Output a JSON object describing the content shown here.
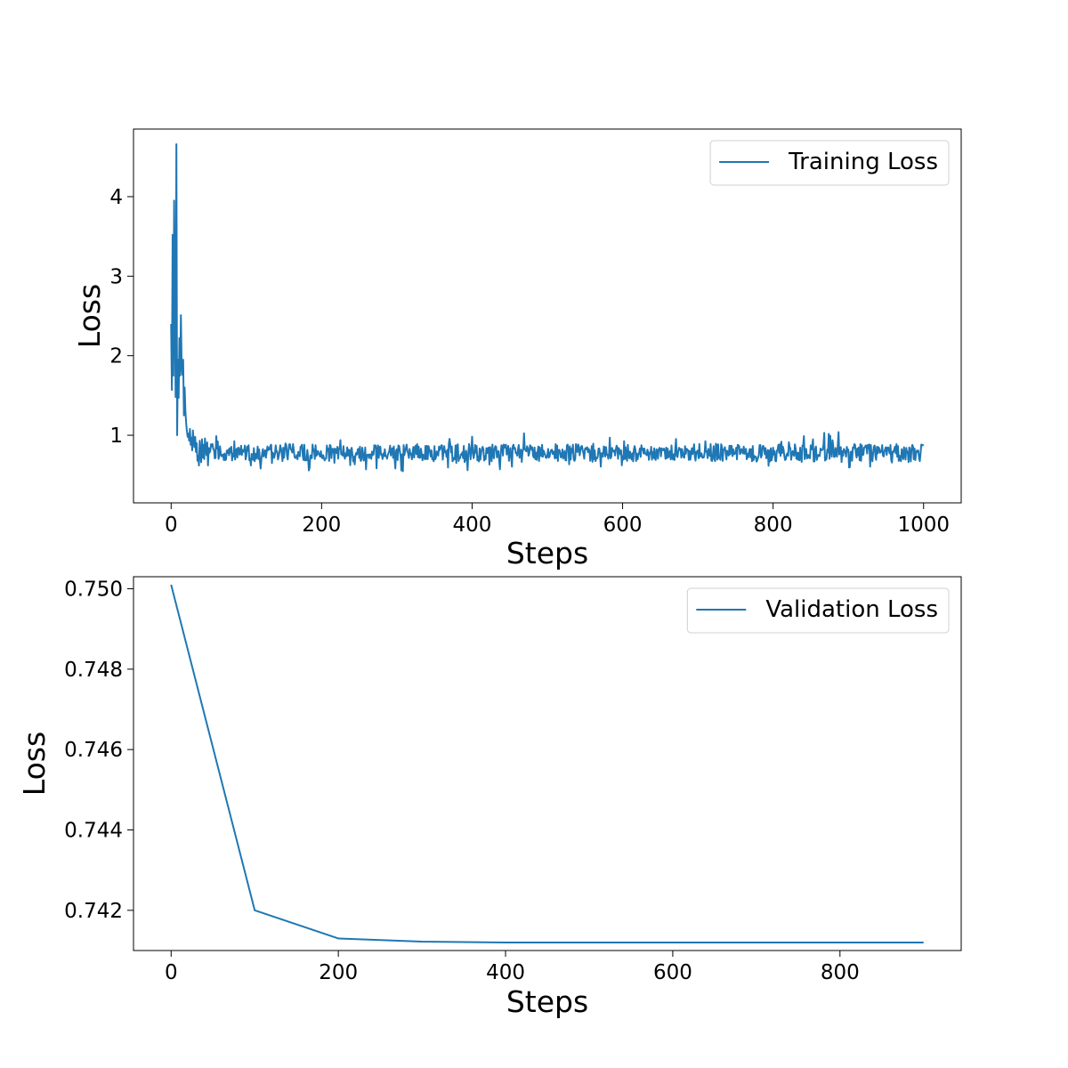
{
  "chart_data": [
    {
      "type": "line",
      "xlabel": "Steps",
      "ylabel": "Loss",
      "xlim": [
        -50,
        1050
      ],
      "ylim": [
        0.15,
        4.85
      ],
      "xticks": [
        0,
        200,
        400,
        600,
        800,
        1000
      ],
      "yticks": [
        1,
        2,
        3,
        4
      ],
      "legend_position": "top-right",
      "grid": false,
      "series": [
        {
          "name": "Training Loss",
          "color": "#1f77b4",
          "x_start": 0,
          "x_step": 1,
          "values": [
            2.4,
            1.57,
            3.52,
            1.75,
            3.95,
            2.5,
            1.48,
            4.66,
            1.0,
            1.95,
            1.47,
            2.22,
            1.75,
            2.51,
            1.88,
            1.76,
            1.95,
            1.25,
            1.6,
            1.3,
            1.15,
            1.05,
            0.98,
            1.02,
            0.93,
            1.08,
            0.88,
            0.97,
            0.81,
            1.06,
            0.92,
            0.85,
            0.98,
            0.79,
            0.9,
            0.68,
            0.74,
            0.62,
            0.93,
            0.77,
            0.66,
            0.95,
            0.72,
            0.88,
            0.7,
            0.96,
            0.83,
            0.75,
            0.91,
            0.62,
            0.84,
            0.78
          ]
        }
      ]
    },
    {
      "type": "line",
      "xlabel": "Steps",
      "ylabel": "Loss",
      "xlim": [
        -45,
        945
      ],
      "ylim": [
        0.741,
        0.7503
      ],
      "xticks": [
        0,
        200,
        400,
        600,
        800
      ],
      "yticks": [
        0.742,
        0.744,
        0.746,
        0.748,
        0.75
      ],
      "ytick_labels": [
        "0.742",
        "0.744",
        "0.746",
        "0.748",
        "0.750"
      ],
      "legend_position": "top-right",
      "grid": false,
      "series": [
        {
          "name": "Validation Loss",
          "color": "#1f77b4",
          "x": [
            0,
            100,
            200,
            300,
            400,
            500,
            600,
            700,
            800,
            900
          ],
          "values": [
            0.7501,
            0.742,
            0.7413,
            0.74122,
            0.7412,
            0.7412,
            0.7412,
            0.7412,
            0.7412,
            0.7412
          ]
        }
      ]
    }
  ]
}
